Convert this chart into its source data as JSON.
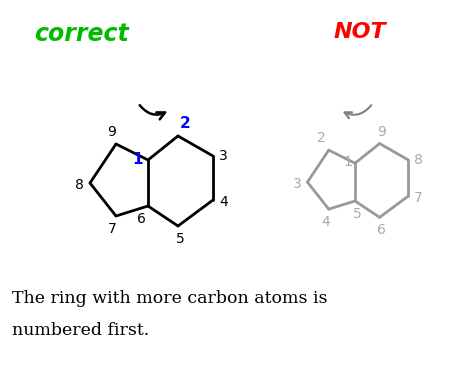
{
  "title_correct": "correct",
  "title_not": "NOT",
  "correct_color": "#00bb00",
  "not_color": "#ff0000",
  "molecule_color_correct": "#000000",
  "molecule_color_not": "#999999",
  "label_color_black": "#000000",
  "label_color_not": "#aaaaaa",
  "label_color_blue": "#0000ff",
  "bg_color": "#ffffff",
  "text_line1": "The ring with more carbon atoms is",
  "text_line2": "numbered first.",
  "text_color": "#000000",
  "text_fontsize": 12.5,
  "label_fontsize": 10,
  "title_fontsize_correct": 17,
  "title_fontsize_not": 16
}
